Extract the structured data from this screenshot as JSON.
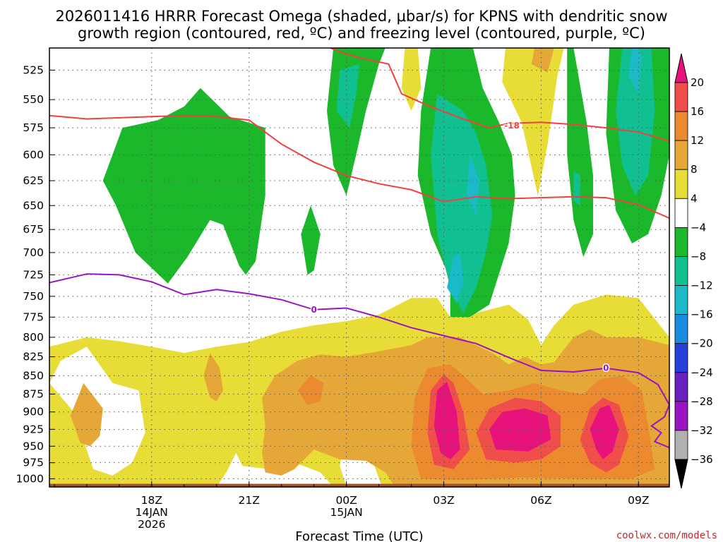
{
  "chart_data": {
    "type": "heatmap",
    "title_lines": [
      "2026011416 HRRR Forecast Omega (shaded, μbar/s) for KPNS with dendritic snow",
      "growth region (contoured, red, ºC) and freezing level (contoured, purple, ºC)"
    ],
    "xlabel": "Forecast Time (UTC)",
    "ylabel": "",
    "credit": "coolwx.com/models",
    "x_ticks": [
      {
        "hour": 2,
        "lines": [
          "18Z",
          "14JAN",
          "2026"
        ]
      },
      {
        "hour": 5,
        "lines": [
          "21Z"
        ]
      },
      {
        "hour": 8,
        "lines": [
          "00Z",
          "15JAN"
        ]
      },
      {
        "hour": 11,
        "lines": [
          "03Z"
        ]
      },
      {
        "hour": 14,
        "lines": [
          "06Z"
        ]
      },
      {
        "hour": 17,
        "lines": [
          "09Z"
        ]
      }
    ],
    "x_range_hours": [
      -1.15,
      17.95
    ],
    "y_range_mb": [
      507,
      1013
    ],
    "y_ticks": [
      525,
      550,
      575,
      600,
      625,
      650,
      675,
      700,
      725,
      750,
      775,
      800,
      825,
      850,
      875,
      900,
      925,
      950,
      975,
      1000
    ],
    "colorbar": {
      "labels": [
        "20",
        "16",
        "12",
        "8",
        "4",
        "−4",
        "−8",
        "−12",
        "−16",
        "−20",
        "−24",
        "−28",
        "−32",
        "−36"
      ],
      "colors": [
        "#e8127d",
        "#f04e4a",
        "#ec8a30",
        "#e5a838",
        "#e8dc36",
        "#ffffff",
        "#1cb82c",
        "#10c090",
        "#1cbac8",
        "#1a8ce0",
        "#2540d8",
        "#6a1fc0",
        "#9a14c0",
        "#b0b0b0",
        "#000000"
      ],
      "top_color": "#e8127d",
      "bottom_color": "#000000"
    },
    "omega_levels": [
      {
        "level": -8,
        "color": "#1cb82c",
        "label": "-8 to -4 (rising)"
      },
      {
        "level": -12,
        "color": "#10c090",
        "label": "-12 to -8"
      },
      {
        "level": -16,
        "color": "#1cbac8",
        "label": "-16 to -12"
      },
      {
        "level": 4,
        "color": "#e8dc36",
        "label": "4 to 8 (sinking)"
      },
      {
        "level": 8,
        "color": "#e5a838",
        "label": "8 to 12"
      },
      {
        "level": 12,
        "color": "#ec8a30",
        "label": "12 to 16"
      },
      {
        "level": 16,
        "color": "#f04e4a",
        "label": "16 to 20"
      },
      {
        "level": 20,
        "color": "#e8127d",
        "label": ">20"
      }
    ],
    "contours": {
      "dgz_minus18": {
        "color": "#f04040",
        "label": "-18",
        "upper_branch": [
          [
            7.5,
            507
          ],
          [
            8,
            512
          ],
          [
            8.6,
            516
          ],
          [
            9.3,
            520
          ],
          [
            9.7,
            545
          ],
          [
            10.5,
            555
          ],
          [
            11.6,
            567
          ],
          [
            12.4,
            575
          ],
          [
            13,
            571
          ],
          [
            14,
            570
          ],
          [
            15,
            572
          ],
          [
            16,
            575
          ],
          [
            17,
            579
          ],
          [
            17.95,
            587
          ]
        ],
        "lower_branch": [
          [
            -1.15,
            564
          ],
          [
            0,
            567
          ],
          [
            1,
            566
          ],
          [
            2,
            565
          ],
          [
            3,
            564
          ],
          [
            4,
            565
          ],
          [
            5,
            568
          ],
          [
            6,
            590
          ],
          [
            7,
            607
          ],
          [
            8,
            620
          ],
          [
            9,
            628
          ],
          [
            10,
            634
          ],
          [
            11,
            646
          ],
          [
            12,
            641
          ],
          [
            13,
            643
          ],
          [
            14,
            642
          ],
          [
            15,
            641
          ],
          [
            16,
            642
          ],
          [
            17,
            649
          ],
          [
            17.95,
            663
          ]
        ]
      },
      "freezing_level_0C": {
        "color": "#9a14c0",
        "label": "0",
        "points": [
          [
            -1.15,
            734
          ],
          [
            0,
            724
          ],
          [
            1,
            725
          ],
          [
            2,
            733
          ],
          [
            3,
            748
          ],
          [
            4,
            742
          ],
          [
            5,
            747
          ],
          [
            6,
            754
          ],
          [
            7,
            766
          ],
          [
            8,
            764
          ],
          [
            9,
            775
          ],
          [
            10,
            788
          ],
          [
            11,
            798
          ],
          [
            12,
            808
          ],
          [
            13,
            826
          ],
          [
            14,
            843
          ],
          [
            15,
            845
          ],
          [
            16,
            840
          ],
          [
            17,
            846
          ],
          [
            17.6,
            862
          ],
          [
            17.95,
            890
          ],
          [
            17.8,
            907
          ],
          [
            17.4,
            920
          ],
          [
            17.7,
            930
          ],
          [
            17.5,
            943
          ],
          [
            17.95,
            952
          ]
        ]
      }
    },
    "ground_layer": {
      "color": "#a0522d",
      "top_mb": 1008
    }
  }
}
